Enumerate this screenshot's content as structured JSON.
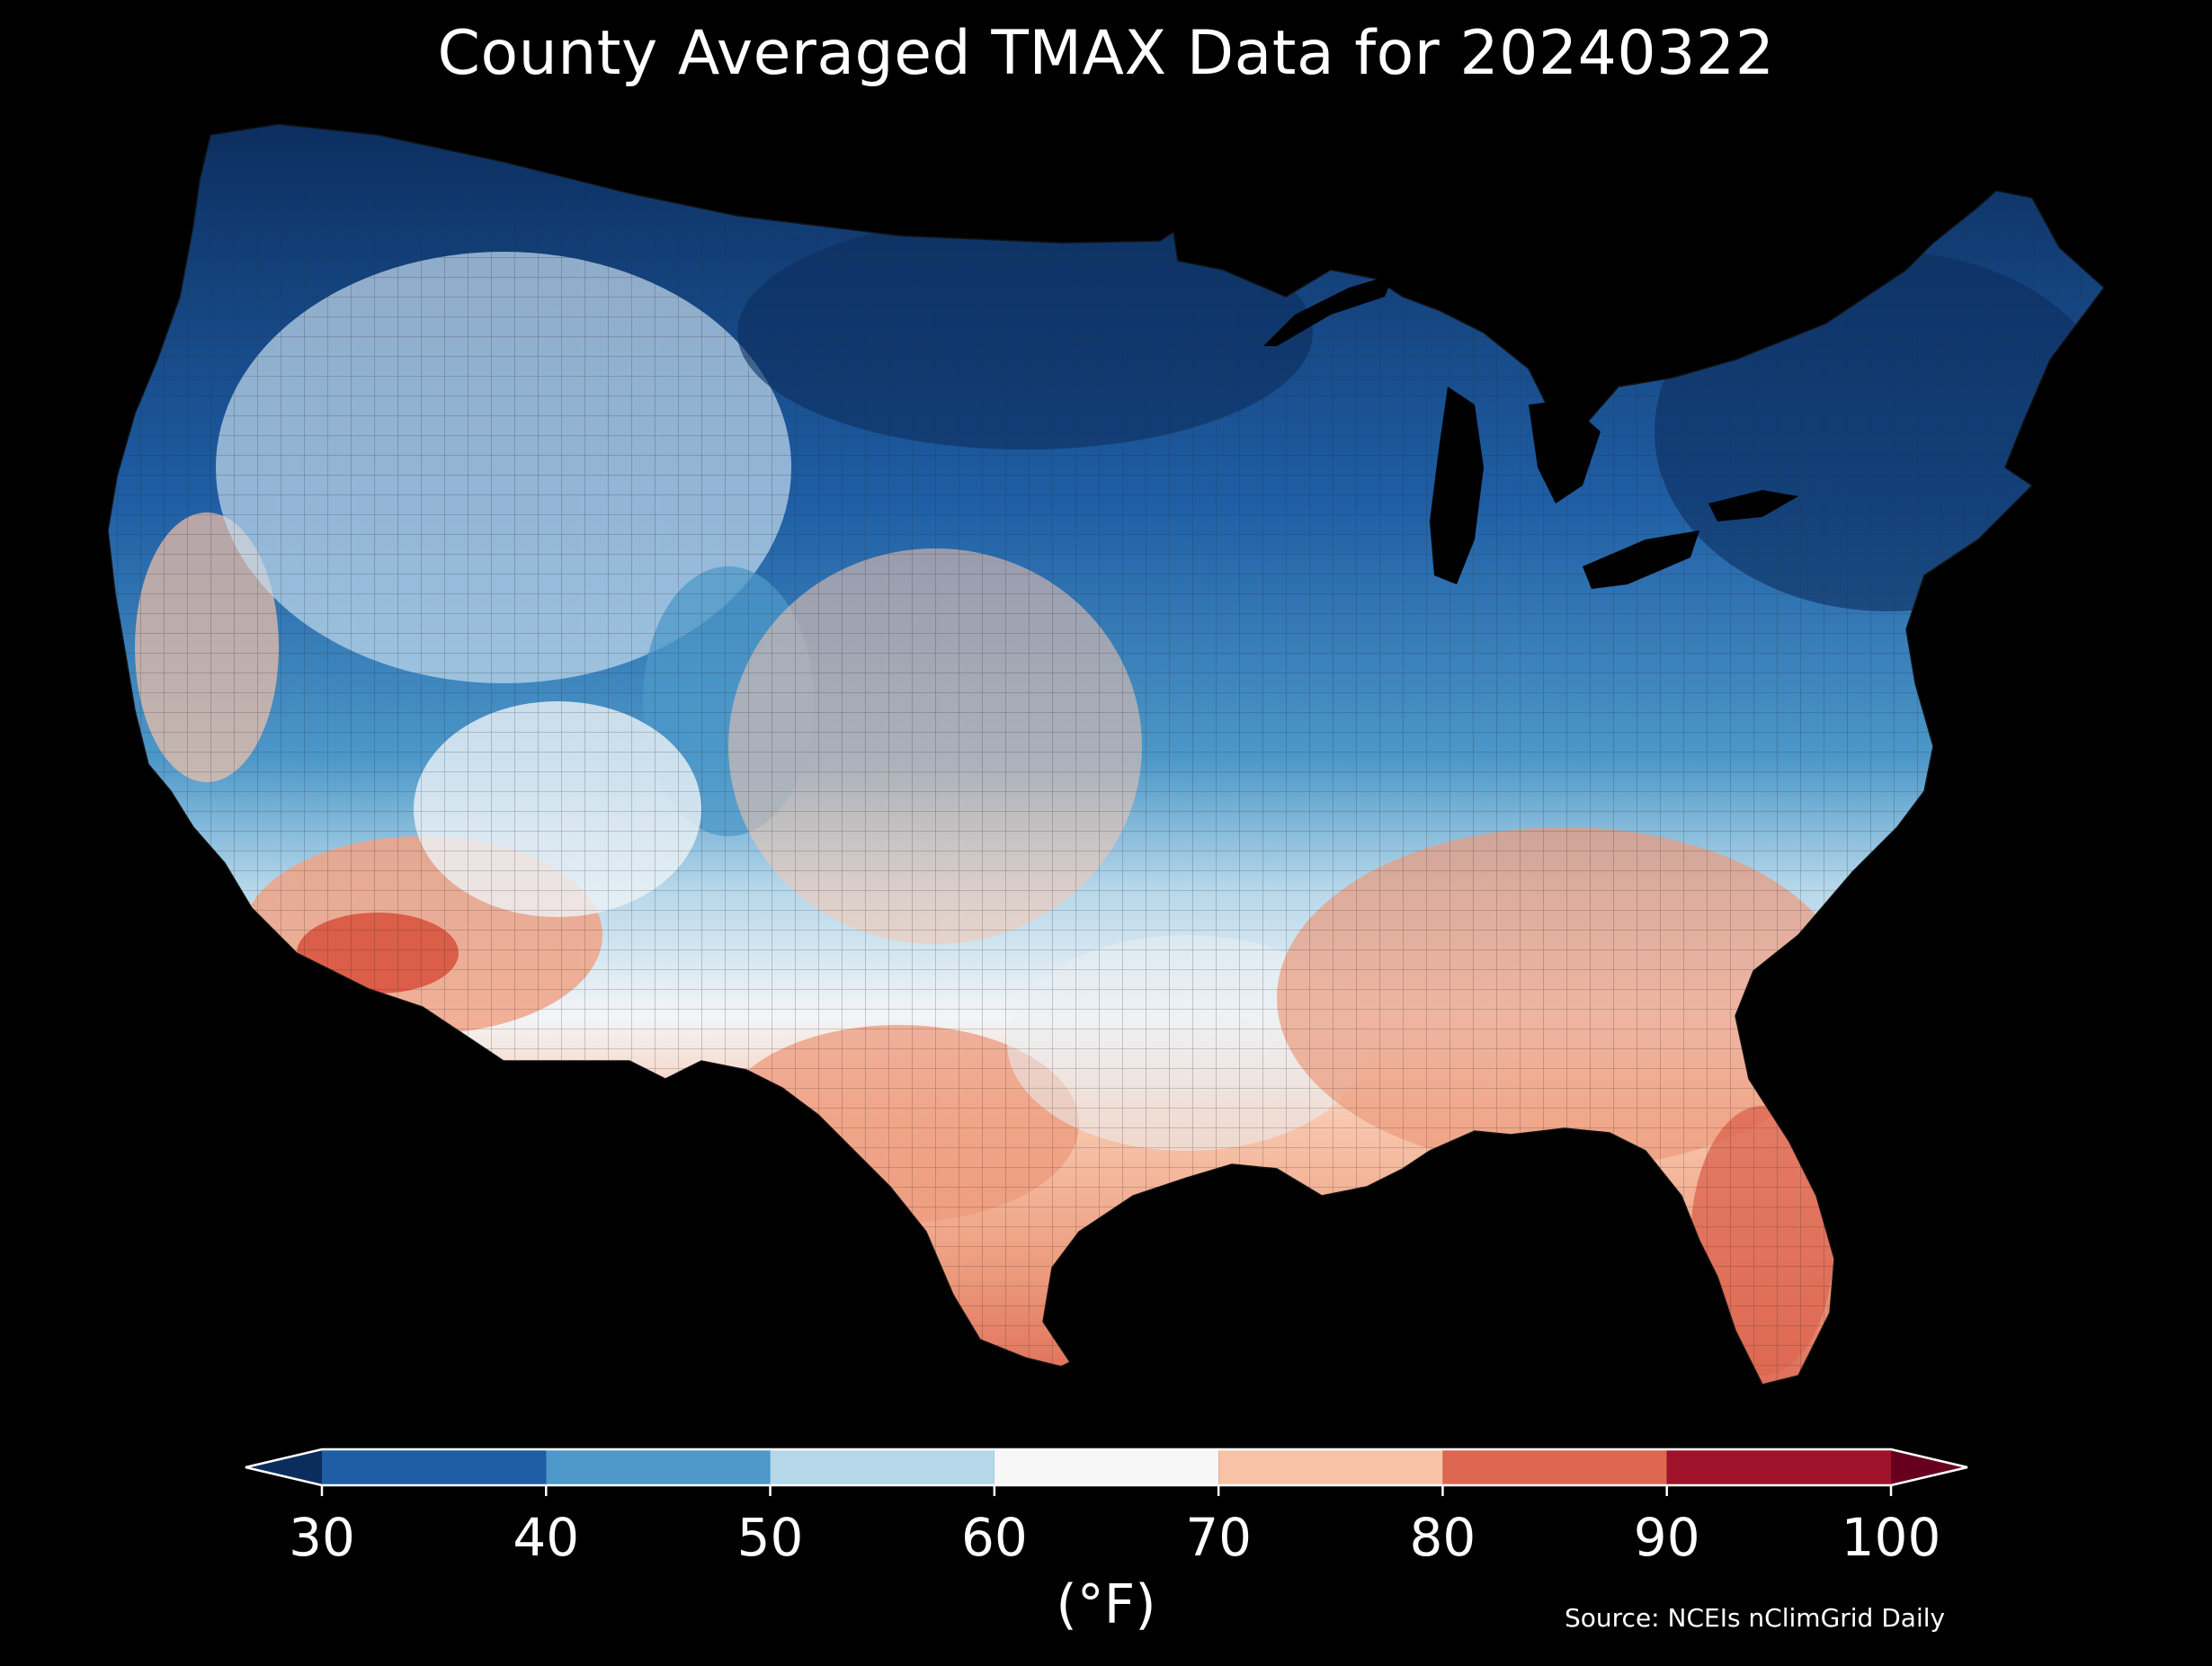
{
  "title": "County Averaged TMAX Data for 20240322",
  "colorbar": {
    "unit_label": "(°F)",
    "ticks": [
      "30",
      "40",
      "50",
      "60",
      "70",
      "80",
      "90",
      "100"
    ],
    "bins": [
      {
        "range": [
          20,
          30
        ],
        "color": "#0b2d5e"
      },
      {
        "range": [
          30,
          40
        ],
        "color": "#1f5ea5"
      },
      {
        "range": [
          40,
          50
        ],
        "color": "#4d98c9"
      },
      {
        "range": [
          50,
          60
        ],
        "color": "#b6d7ea"
      },
      {
        "range": [
          60,
          70
        ],
        "color": "#f7f7f7"
      },
      {
        "range": [
          70,
          80
        ],
        "color": "#f8c2a6"
      },
      {
        "range": [
          80,
          90
        ],
        "color": "#dd6651"
      },
      {
        "range": [
          90,
          100
        ],
        "color": "#a0122a"
      },
      {
        "range": [
          100,
          110
        ],
        "color": "#67001f"
      }
    ],
    "extend": "both"
  },
  "source": "Source: NCEIs nClimGrid Daily",
  "map": {
    "region": "Contiguous United States",
    "variable": "TMAX",
    "units": "°F",
    "background": "#000000",
    "outline_color": "#222222"
  }
}
